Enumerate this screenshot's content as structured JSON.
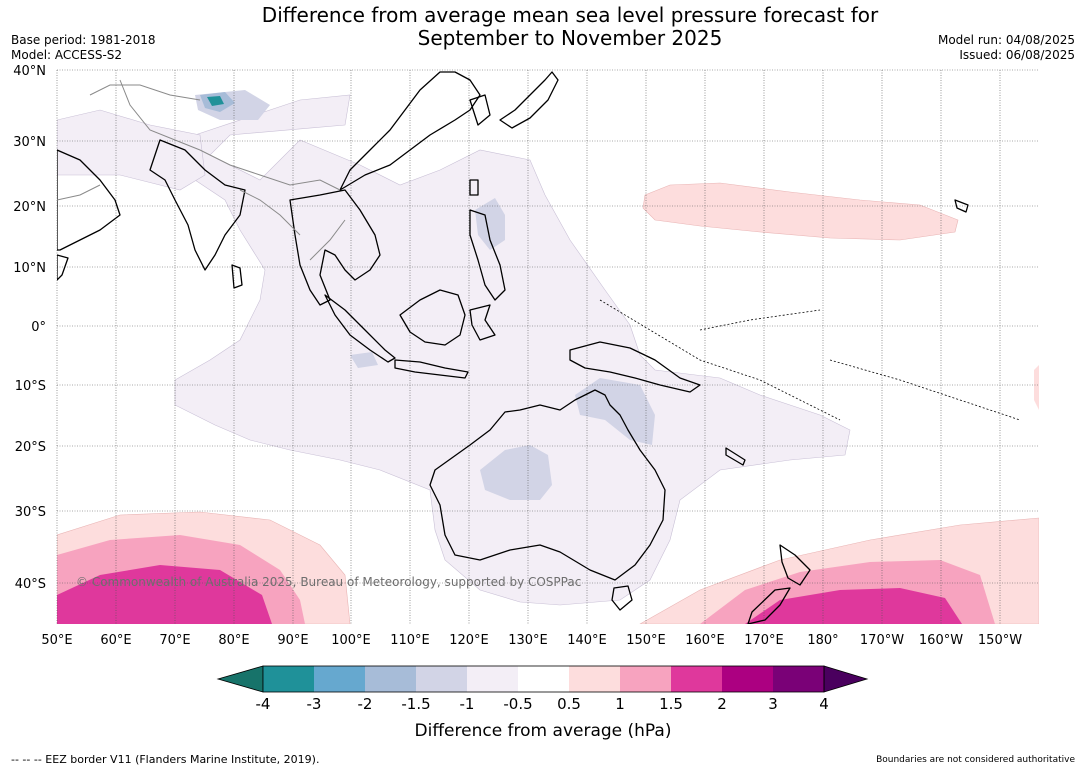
{
  "header": {
    "title_line1": "Difference from average mean sea level pressure forecast for",
    "title_line2": "September to November 2025",
    "base_period": "Base period: 1981-2018",
    "model": "Model: ACCESS-S2",
    "model_run": "Model run: 04/08/2025",
    "issued": "Issued: 06/08/2025"
  },
  "map": {
    "lat_labels": [
      "40°N",
      "30°N",
      "20°N",
      "10°N",
      "0°",
      "10°S",
      "20°S",
      "30°S",
      "40°S"
    ],
    "lon_labels": [
      "50°E",
      "60°E",
      "70°E",
      "80°E",
      "90°E",
      "100°E",
      "110°E",
      "120°E",
      "130°E",
      "140°E",
      "150°E",
      "160°E",
      "170°E",
      "180°",
      "170°W",
      "160°W",
      "150°W"
    ],
    "copyright": "© Commonwealth of Australia 2025, Bureau of Meteorology, supported by COSPPac"
  },
  "colorbar": {
    "title": "Difference from average (hPa)",
    "tick_labels": [
      "-4",
      "-3",
      "-2",
      "-1.5",
      "-1",
      "-0.5",
      "0.5",
      "1",
      "1.5",
      "2",
      "3",
      "4"
    ],
    "colors": [
      "#17736a",
      "#1f9199",
      "#66a8cf",
      "#a7bcd8",
      "#d2d4e6",
      "#f3eef6",
      "#ffffff",
      "#fddddd",
      "#f7a3bf",
      "#df389c",
      "#ac0081",
      "#7a0177",
      "#4a005e"
    ]
  },
  "footer": {
    "eez": "--  --  -- EEZ border V11 (Flanders Marine Institute, 2019).",
    "disclaimer": "Boundaries are not considered authoritative"
  }
}
